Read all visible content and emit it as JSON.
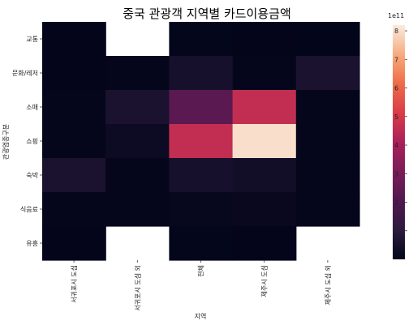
{
  "chart_data": {
    "type": "heatmap",
    "title": "중국 관광객 지역별 카드이용금액",
    "xlabel": "지역",
    "ylabel": "관광업종구분",
    "columns": [
      "서귀포시 도심",
      "서귀포시 도심 외",
      "전체",
      "제주시 도심",
      "제주시 도심 외"
    ],
    "rows": [
      "교통",
      "문화/레저",
      "소매",
      "쇼핑",
      "숙박",
      "식음료",
      "유흥"
    ],
    "values_e11": [
      [
        0.02,
        null,
        0.03,
        0.02,
        0.01
      ],
      [
        0.02,
        0.05,
        0.5,
        0.05,
        0.6
      ],
      [
        0.05,
        0.6,
        2.3,
        4.6,
        0.05
      ],
      [
        0.05,
        0.25,
        4.6,
        8.0,
        0.05
      ],
      [
        0.6,
        0.05,
        0.5,
        0.4,
        0.05
      ],
      [
        0.05,
        0.05,
        0.1,
        0.15,
        0.05
      ],
      [
        0.02,
        null,
        0.03,
        0.02,
        null
      ]
    ],
    "colorbar": {
      "min": 0,
      "max": 8.2,
      "ticks": [
        1,
        2,
        3,
        4,
        5,
        6,
        7,
        8
      ],
      "scale_label": "1e11"
    }
  }
}
